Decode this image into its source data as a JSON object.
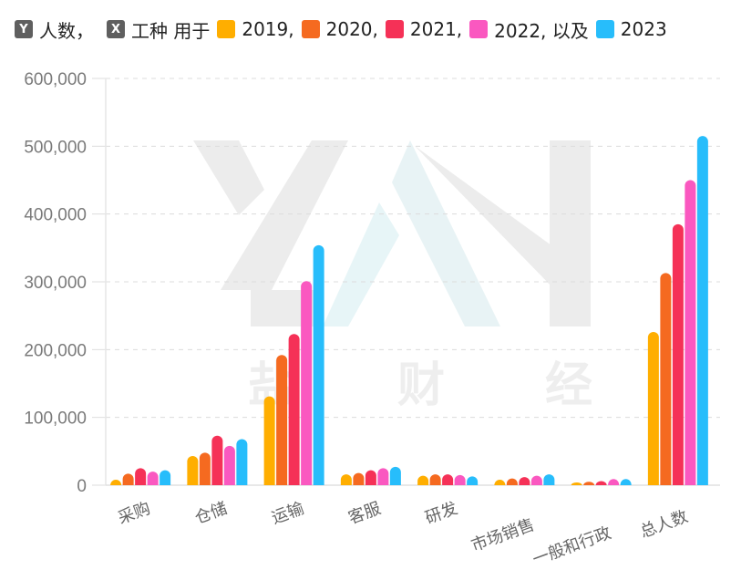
{
  "legend": {
    "y_badge": "Y",
    "y_label": "人数，",
    "x_badge": "X",
    "x_label": "工种 用于",
    "items": [
      {
        "label": "2019,",
        "color": "#FFAE00"
      },
      {
        "label": "2020,",
        "color": "#F56A20"
      },
      {
        "label": "2021,",
        "color": "#F53157"
      },
      {
        "label": "2022, 以及",
        "color": "#FA58C0"
      },
      {
        "label": "2023",
        "color": "#27BDFB"
      }
    ]
  },
  "watermark": {
    "text": [
      "盐",
      "财",
      "经"
    ]
  },
  "chart_data": {
    "type": "bar",
    "title": "",
    "xlabel": "工种",
    "ylabel": "人数",
    "ylim": [
      0,
      600000
    ],
    "yticks": [
      0,
      100000,
      200000,
      300000,
      400000,
      500000,
      600000
    ],
    "ytick_labels": [
      "0",
      "100,000",
      "200,000",
      "300,000",
      "400,000",
      "500,000",
      "600,000"
    ],
    "grid": true,
    "legend_position": "top",
    "categories": [
      "采购",
      "仓储",
      "运输",
      "客服",
      "研发",
      "市场销售",
      "一般和行政",
      "总人数"
    ],
    "series": [
      {
        "name": "2019",
        "color": "#FFAE00",
        "values": [
          8000,
          43000,
          131000,
          16000,
          14000,
          8000,
          4000,
          226000
        ]
      },
      {
        "name": "2020",
        "color": "#F56A20",
        "values": [
          17000,
          48000,
          192000,
          18000,
          16000,
          10000,
          5000,
          313000
        ]
      },
      {
        "name": "2021",
        "color": "#F53157",
        "values": [
          25000,
          73000,
          223000,
          22000,
          16000,
          12000,
          6000,
          385000
        ]
      },
      {
        "name": "2022",
        "color": "#FA58C0",
        "values": [
          20000,
          58000,
          301000,
          25000,
          15000,
          14000,
          9000,
          450000
        ]
      },
      {
        "name": "2023",
        "color": "#27BDFB",
        "values": [
          22000,
          68000,
          354000,
          27000,
          13000,
          16000,
          9000,
          515000
        ]
      }
    ]
  }
}
